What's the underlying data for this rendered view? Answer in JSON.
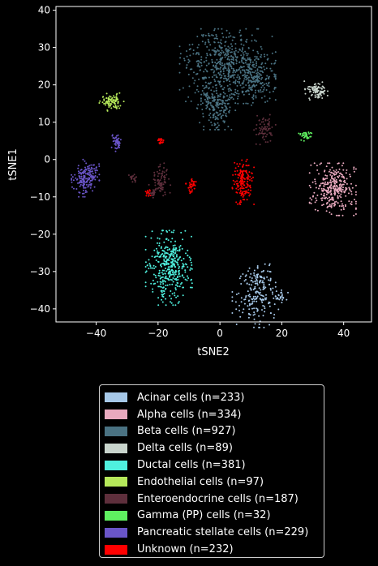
{
  "chart_data": {
    "type": "scatter",
    "title": "",
    "xlabel": "tSNE2",
    "ylabel": "tSNE1",
    "xlim": [
      -53,
      49
    ],
    "ylim": [
      -43.5,
      41
    ],
    "xticks": [
      -40,
      -20,
      0,
      20,
      40
    ],
    "yticks": [
      -40,
      -30,
      -20,
      -10,
      0,
      10,
      20,
      30,
      40
    ],
    "grid": false,
    "legend_position": "below",
    "background": "#000000",
    "series": [
      {
        "name": "Acinar cells (n=233)",
        "n": 233,
        "color": "#a6c8e8",
        "clusters": [
          {
            "x": [
              4,
              20
            ],
            "y": [
              -45,
              -30
            ],
            "weight": 1,
            "cx": 11,
            "cy": -37.5
          },
          {
            "x": [
              6,
              18
            ],
            "y": [
              -36,
              -28
            ],
            "weight": 0.5
          },
          {
            "x": [
              17,
              22
            ],
            "y": [
              -38,
              -35
            ],
            "weight": 0.2
          }
        ]
      },
      {
        "name": "Alpha cells (n=334)",
        "n": 334,
        "color": "#e8a9be",
        "clusters": [
          {
            "x": [
              29,
              44
            ],
            "y": [
              -15,
              -1
            ],
            "weight": 1
          }
        ]
      },
      {
        "name": "Beta cells (n=927)",
        "n": 927,
        "color": "#4a7282",
        "clusters": [
          {
            "x": [
              -13,
              18
            ],
            "y": [
              15,
              35
            ],
            "weight": 1
          },
          {
            "x": [
              -8,
              5
            ],
            "y": [
              8,
              22
            ],
            "weight": 0.35
          },
          {
            "x": [
              5,
              18
            ],
            "y": [
              14,
              28
            ],
            "weight": 0.25
          }
        ]
      },
      {
        "name": "Delta cells (n=89)",
        "n": 89,
        "color": "#c8d4cc",
        "clusters": [
          {
            "x": [
              27,
              35
            ],
            "y": [
              16,
              21
            ],
            "weight": 1
          }
        ]
      },
      {
        "name": "Ductal cells (n=381)",
        "n": 381,
        "color": "#4ff0de",
        "clusters": [
          {
            "x": [
              -24,
              -9
            ],
            "y": [
              -39,
              -19
            ],
            "weight": 1
          }
        ]
      },
      {
        "name": "Endothelial cells (n=97)",
        "n": 97,
        "color": "#b5e85a",
        "clusters": [
          {
            "x": [
              -39,
              -31
            ],
            "y": [
              13,
              18
            ],
            "weight": 1
          }
        ]
      },
      {
        "name": "Enteroendocrine cells (n=187)",
        "n": 187,
        "color": "#5e2f3c",
        "clusters": [
          {
            "x": [
              -23,
              -16
            ],
            "y": [
              -11,
              -1
            ],
            "weight": 0.45
          },
          {
            "x": [
              11,
              18
            ],
            "y": [
              4,
              12
            ],
            "weight": 0.35
          },
          {
            "x": [
              -30,
              -27
            ],
            "y": [
              -6,
              -4
            ],
            "weight": 0.1
          },
          {
            "x": [
              -23,
              -20
            ],
            "y": [
              -10,
              -8
            ],
            "weight": 0.1
          }
        ]
      },
      {
        "name": "Gamma (PP) cells (n=32)",
        "n": 32,
        "color": "#5ff060",
        "clusters": [
          {
            "x": [
              25,
              30
            ],
            "y": [
              5,
              8
            ],
            "weight": 1
          }
        ]
      },
      {
        "name": "Pancreatic stellate cells (n=229)",
        "n": 229,
        "color": "#6a55c8",
        "clusters": [
          {
            "x": [
              -48,
              -39
            ],
            "y": [
              -10,
              0
            ],
            "weight": 0.8
          },
          {
            "x": [
              -35,
              -32
            ],
            "y": [
              2,
              7
            ],
            "weight": 0.2
          }
        ]
      },
      {
        "name": "Unknown (n=232)",
        "n": 232,
        "color": "#ff0000",
        "clusters": [
          {
            "x": [
              4,
              11
            ],
            "y": [
              -12,
              0
            ],
            "weight": 0.7
          },
          {
            "x": [
              -11,
              -7
            ],
            "y": [
              -9,
              -5
            ],
            "weight": 0.15
          },
          {
            "x": [
              -20,
              -18
            ],
            "y": [
              4,
              6
            ],
            "weight": 0.1
          },
          {
            "x": [
              -24,
              -22
            ],
            "y": [
              -10,
              -8
            ],
            "weight": 0.05
          }
        ]
      }
    ]
  }
}
